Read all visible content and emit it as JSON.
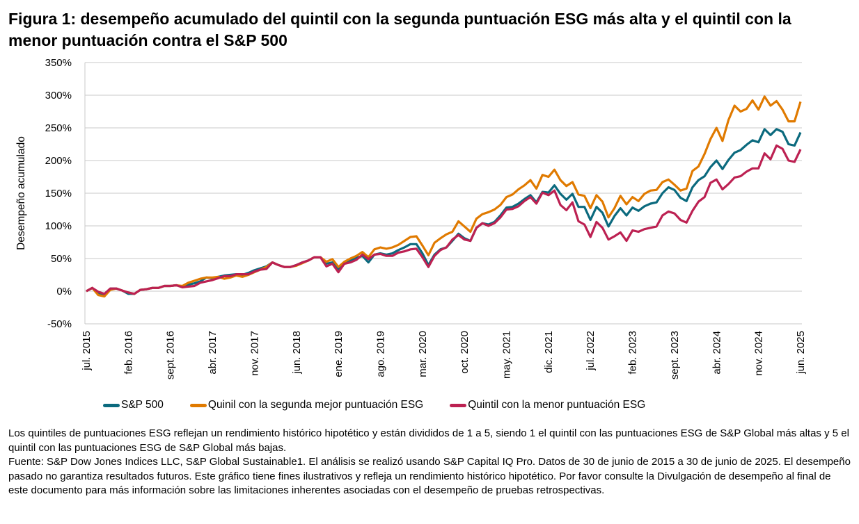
{
  "title": "Figura 1: desempeño acumulado del quintil con la segunda puntuación ESG más alta y el quintil con la menor puntuación contra el S&P 500",
  "chart_data": {
    "type": "line",
    "title": "Figura 1: desempeño acumulado del quintil con la segunda puntuación ESG más alta y el quintil con la menor puntuación contra el S&P 500",
    "xlabel": "",
    "ylabel": "Desempeño acumulado",
    "x_start": "2015-07",
    "x_end": "2025-06",
    "x_frequency": "monthly",
    "x_tick_labels": [
      "jul. 2015",
      "feb. 2016",
      "sept. 2016",
      "abr. 2017",
      "nov. 2017",
      "jun. 2018",
      "ene. 2019",
      "ago. 2019",
      "mar. 2020",
      "oct. 2020",
      "may. 2021",
      "dic. 2021",
      "jul. 2022",
      "feb. 2023",
      "sept. 2023",
      "abr. 2024",
      "nov. 2024",
      "jun. 2025"
    ],
    "y_tick_labels": [
      "350%",
      "300%",
      "250%",
      "200%",
      "150%",
      "100%",
      "50%",
      "0%",
      "-50%"
    ],
    "y_ticks": [
      350,
      300,
      250,
      200,
      150,
      100,
      50,
      0,
      -50
    ],
    "ylim": [
      -50,
      350
    ],
    "y_unit": "%",
    "grid": "horizontal",
    "legend_position": "bottom",
    "series": [
      {
        "name": "S&P 500",
        "color": "#0b6a7e",
        "values": [
          0,
          5,
          -4,
          -6,
          4,
          4,
          1,
          -4,
          -4,
          2,
          3,
          5,
          5,
          8,
          8,
          9,
          7,
          10,
          12,
          15,
          21,
          20,
          22,
          24,
          25,
          26,
          25,
          28,
          32,
          35,
          38,
          44,
          40,
          37,
          37,
          40,
          44,
          47,
          52,
          52,
          42,
          44,
          33,
          44,
          47,
          51,
          54,
          44,
          56,
          58,
          56,
          58,
          63,
          67,
          72,
          72,
          58,
          40,
          56,
          64,
          67,
          77,
          88,
          81,
          77,
          97,
          104,
          102,
          106,
          116,
          128,
          129,
          134,
          141,
          147,
          136,
          152,
          151,
          162,
          149,
          140,
          149,
          129,
          129,
          109,
          129,
          120,
          99,
          115,
          127,
          116,
          128,
          123,
          130,
          134,
          136,
          150,
          159,
          155,
          143,
          138,
          159,
          170,
          176,
          190,
          200,
          187,
          201,
          212,
          216,
          224,
          231,
          228,
          248,
          239,
          248,
          244,
          225,
          223,
          243
        ]
      },
      {
        "name": "Quinil con la segunda mejor puntuación ESG",
        "color": "#e07a00",
        "values": [
          0,
          5,
          -6,
          -8,
          2,
          4,
          1,
          -2,
          -4,
          2,
          3,
          5,
          5,
          8,
          8,
          9,
          8,
          13,
          16,
          19,
          21,
          21,
          22,
          19,
          21,
          24,
          22,
          25,
          29,
          33,
          37,
          44,
          40,
          37,
          37,
          39,
          43,
          47,
          52,
          52,
          45,
          49,
          37,
          45,
          50,
          54,
          60,
          52,
          64,
          67,
          65,
          67,
          71,
          77,
          83,
          84,
          70,
          55,
          74,
          81,
          87,
          91,
          107,
          99,
          91,
          111,
          118,
          121,
          125,
          132,
          144,
          148,
          156,
          162,
          170,
          157,
          178,
          175,
          186,
          170,
          161,
          167,
          148,
          146,
          127,
          147,
          137,
          113,
          127,
          146,
          133,
          144,
          138,
          149,
          154,
          155,
          167,
          171,
          163,
          154,
          157,
          184,
          191,
          210,
          233,
          250,
          230,
          262,
          284,
          275,
          279,
          292,
          278,
          298,
          284,
          291,
          278,
          260,
          260,
          290
        ]
      },
      {
        "name": "Quintil con la menor puntuación ESG",
        "color": "#bc2152",
        "values": [
          0,
          5,
          -1,
          -4,
          4,
          4,
          1,
          -2,
          -4,
          2,
          3,
          5,
          5,
          8,
          8,
          9,
          6,
          7,
          8,
          13,
          15,
          17,
          20,
          23,
          23,
          26,
          26,
          26,
          30,
          33,
          34,
          44,
          40,
          37,
          37,
          40,
          44,
          47,
          52,
          52,
          38,
          42,
          29,
          42,
          44,
          48,
          56,
          49,
          56,
          57,
          54,
          54,
          59,
          61,
          64,
          65,
          52,
          37,
          54,
          63,
          67,
          79,
          86,
          79,
          77,
          97,
          104,
          100,
          104,
          113,
          125,
          126,
          130,
          138,
          144,
          134,
          151,
          147,
          154,
          132,
          124,
          136,
          107,
          102,
          83,
          106,
          97,
          79,
          84,
          90,
          77,
          93,
          91,
          95,
          97,
          99,
          116,
          122,
          119,
          109,
          105,
          123,
          137,
          144,
          166,
          171,
          156,
          164,
          174,
          176,
          183,
          188,
          188,
          211,
          202,
          223,
          218,
          200,
          198,
          217
        ]
      }
    ]
  },
  "legend": [
    {
      "label": "S&P 500"
    },
    {
      "label": "Quinil con la segunda mejor puntuación ESG"
    },
    {
      "label": "Quintil con la menor puntuación ESG"
    }
  ],
  "notes": [
    "Los quintiles de puntuaciones ESG reflejan un rendimiento histórico hipotético y están divididos de 1 a 5, siendo 1 el quintil con las puntuaciones ESG de S&P Global más altas y 5 el quintil con las puntuaciones ESG de S&P Global más bajas.",
    "Fuente: S&P Dow Jones Indices LLC, S&P Global Sustainable1. El análisis se realizó usando S&P Capital IQ Pro. Datos de 30 de junio de 2015 a 30 de junio de 2025. El desempeño pasado no garantiza resultados futuros. Este gráfico tiene fines ilustrativos y refleja un rendimiento histórico hipotético. Por favor consulte la Divulgación de desempeño al final de este documento para más información sobre las limitaciones inherentes asociadas con el desempeño de pruebas retrospectivas."
  ]
}
